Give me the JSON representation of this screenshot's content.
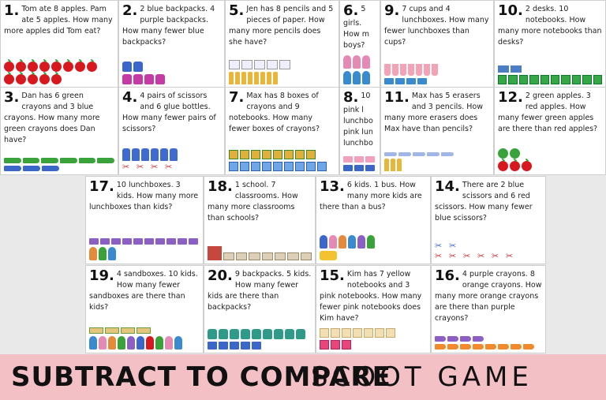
{
  "title": {
    "left": "SUBTRACT TO COMPARE",
    "right": "SCOOT GAME"
  },
  "colors": {
    "banner": "#f3c0c6",
    "apple": "#d7191f",
    "green": "#3aa23a"
  },
  "cards": {
    "c1": {
      "num": "1.",
      "text": "Tom ate 8 apples.  Pam ate 5 apples.  How many more apples did Tom eat?"
    },
    "c2": {
      "num": "2.",
      "text": "2 blue backpacks. 4 purple backpacks. How many fewer blue backpacks?"
    },
    "c5": {
      "num": "5.",
      "text": "Jen has 8 pencils and 5 pieces of paper.  How many more pencils does she have?"
    },
    "c6": {
      "num": "6.",
      "text": "5 girls. How m boys?"
    },
    "c9": {
      "num": "9.",
      "text": "7 cups and 4 lunchboxes. How many fewer lunchboxes than cups?"
    },
    "c10": {
      "num": "10.",
      "text": "2 desks. 10 notebooks. How many more notebooks than desks?"
    },
    "c3": {
      "num": "3.",
      "text": "Dan has 6 green crayons and 3 blue crayons.  How many more green crayons does Dan have?"
    },
    "c4": {
      "num": "4.",
      "text": "4 pairs of scissors and 6 glue bottles.  How many fewer pairs of scissors?"
    },
    "c7": {
      "num": "7.",
      "text": "Max has 8 boxes of crayons and 9 notebooks.  How many fewer boxes of crayons?"
    },
    "c8": {
      "num": "8.",
      "text": "10 pink l lunchbo pink lun lunchbo"
    },
    "c11": {
      "num": "11.",
      "text": "Max has 5 erasers and 3 pencils. How many more erasers does Max have than pencils?"
    },
    "c12": {
      "num": "12.",
      "text": "2 green apples.  3 red apples.  How many fewer green apples are there than red apples?"
    },
    "c17": {
      "num": "17.",
      "text": "10 lunchboxes. 3 kids. How many more lunchboxes than kids?"
    },
    "c18": {
      "num": "18.",
      "text": "1 school. 7 classrooms. How many more classrooms than schools?"
    },
    "c13": {
      "num": "13.",
      "text": "6 kids.  1 bus. How many more kids are there than a bus?"
    },
    "c14": {
      "num": "14.",
      "text": "There are 2 blue scissors and 6 red scissors.  How many fewer blue scissors?"
    },
    "c19": {
      "num": "19.",
      "text": "4 sandboxes. 10 kids. How many fewer sandboxes are there than kids?"
    },
    "c20": {
      "num": "20.",
      "text": "9 backpacks. 5 kids. How many fewer kids are there than backpacks?"
    },
    "c15": {
      "num": "15.",
      "text": "Kim has 7 yellow notebooks and 3 pink notebooks. How many fewer pink notebooks does Kim have?"
    },
    "c16": {
      "num": "16.",
      "text": "4 purple crayons. 8 orange crayons.  How many more orange crayons are there than purple crayons?"
    }
  }
}
